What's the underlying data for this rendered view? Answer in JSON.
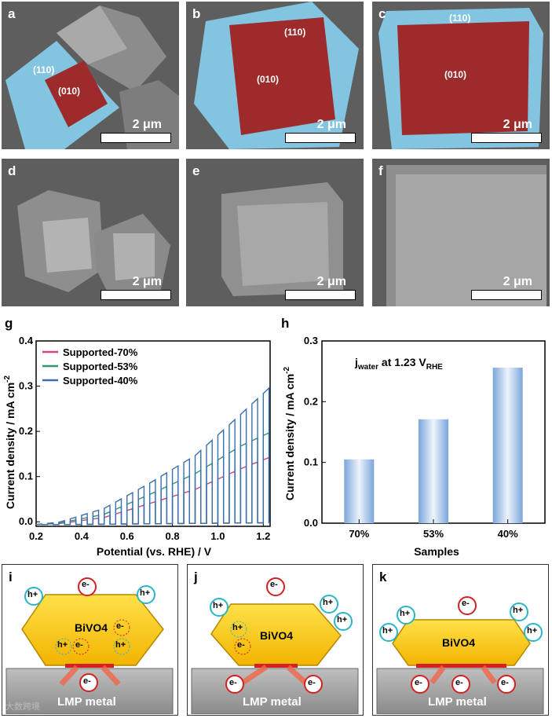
{
  "sem_panels": [
    {
      "letter": "a",
      "scale": "2 μm",
      "facets": [
        "(110)",
        "(010)"
      ]
    },
    {
      "letter": "b",
      "scale": "2 μm",
      "facets": [
        "(110)",
        "(010)"
      ]
    },
    {
      "letter": "c",
      "scale": "2 μm",
      "facets": [
        "(110)",
        "(010)"
      ]
    },
    {
      "letter": "d",
      "scale": "2 μm"
    },
    {
      "letter": "e",
      "scale": "2 μm"
    },
    {
      "letter": "f",
      "scale": "2 μm"
    }
  ],
  "chart_data": [
    {
      "panel": "g",
      "type": "line",
      "xlabel": "Potential (vs. RHE) / V",
      "ylabel": "Current density / mA cm-2",
      "xlim": [
        0.2,
        1.23
      ],
      "ylim": [
        -0.01,
        0.4
      ],
      "xticks": [
        "0.2",
        "0.4",
        "0.6",
        "0.8",
        "1.0",
        "1.2"
      ],
      "yticks": [
        "0.0",
        "0.1",
        "0.2",
        "0.3",
        "0.4"
      ],
      "chopped_light": true,
      "series": [
        {
          "name": "Supported-70%",
          "color": "#d63d8c",
          "x": [
            0.3,
            0.5,
            0.7,
            0.9,
            1.1,
            1.23
          ],
          "photocurrent": [
            0.002,
            0.015,
            0.045,
            0.075,
            0.12,
            0.145
          ]
        },
        {
          "name": "Supported-53%",
          "color": "#2e9a6a",
          "x": [
            0.3,
            0.5,
            0.7,
            0.9,
            1.1,
            1.23
          ],
          "photocurrent": [
            0.003,
            0.022,
            0.065,
            0.11,
            0.17,
            0.2
          ]
        },
        {
          "name": "Supported-40%",
          "color": "#3a6fb0",
          "x": [
            0.3,
            0.5,
            0.7,
            0.9,
            1.1,
            1.23
          ],
          "photocurrent": [
            0.005,
            0.035,
            0.09,
            0.15,
            0.24,
            0.3
          ]
        }
      ]
    },
    {
      "panel": "h",
      "type": "bar",
      "title": "j",
      "title_sub": "water",
      "title_rest": " at 1.23 V",
      "title_sub2": "RHE",
      "xlabel": "Samples",
      "ylabel": "Current density / mA cm-2",
      "categories": [
        "70%",
        "53%",
        "40%"
      ],
      "values": [
        0.105,
        0.171,
        0.256
      ],
      "ylim": [
        0,
        0.3
      ],
      "yticks": [
        "0.0",
        "0.1",
        "0.2",
        "0.3"
      ]
    }
  ],
  "schemes": [
    {
      "letter": "i",
      "material": "BiVO4",
      "substrate": "LMP metal"
    },
    {
      "letter": "j",
      "material": "BiVO4",
      "substrate": "LMP metal"
    },
    {
      "letter": "k",
      "material": "BiVO4",
      "substrate": "LMP metal"
    }
  ],
  "carriers": {
    "hole": "h+",
    "electron": "e-"
  },
  "watermark": "大数跨境"
}
